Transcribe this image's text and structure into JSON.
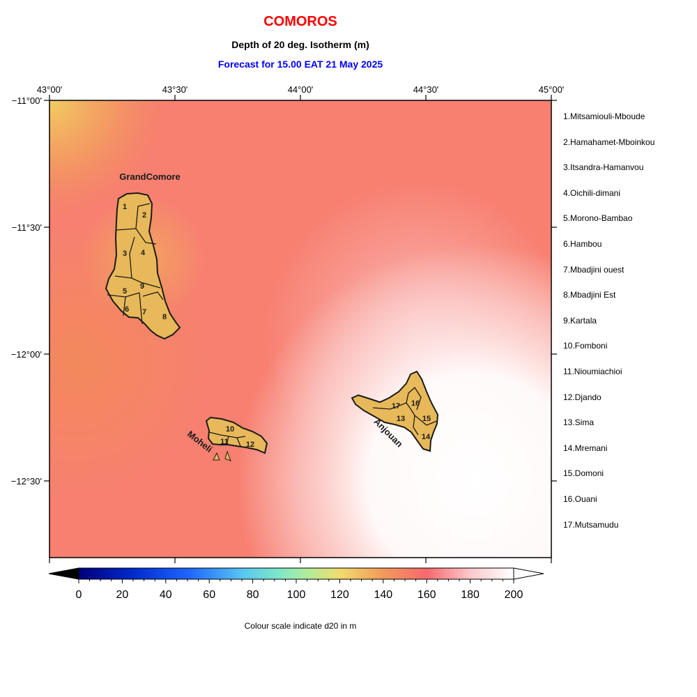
{
  "title": "COMOROS",
  "subtitle": "Depth of 20 deg. Isotherm (m)",
  "forecast": "Forecast for  15.00 EAT 21 May 2025",
  "colors": {
    "title": "#ff0000",
    "forecast": "#0000ff",
    "island_fill": "#e8b95a",
    "island_outline": "#1a1a1a"
  },
  "axes": {
    "lon_labels": [
      "43°00'",
      "43°30'",
      "44°00'",
      "44°30'",
      "45°00'"
    ],
    "lat_labels": [
      "−11°00'",
      "−11°30'",
      "−12°00'",
      "−12°30'"
    ]
  },
  "islands": {
    "grand_comore": "GrandComore",
    "moheli": "Moheli",
    "anjouan": "Anjouan"
  },
  "regions": [
    "1",
    "2",
    "3",
    "4",
    "5",
    "6",
    "7",
    "8",
    "9",
    "10",
    "11",
    "12",
    "13",
    "14",
    "15",
    "16",
    "17"
  ],
  "legend": [
    "1.Mitsamiouli-Mboude",
    "2.Hamahamet-Mboinkou",
    "3.Itsandra-Hamanvou",
    "4.Oichili-dimani",
    "5.Morono-Bambao",
    "6.Hambou",
    "7.Mbadjini ouest",
    "8.Mbadjini Est",
    "9.Kartala",
    "10.Fomboni",
    "11.Nioumiachioi",
    "12.Djando",
    "13.Sima",
    "14.Mremani",
    "15.Domoni",
    "16.Ouani",
    "17.Mutsamudu"
  ],
  "colorbar": {
    "ticks": [
      "0",
      "20",
      "40",
      "60",
      "80",
      "100",
      "120",
      "140",
      "160",
      "180",
      "200"
    ],
    "caption": "Colour scale indicate d20 in m"
  }
}
